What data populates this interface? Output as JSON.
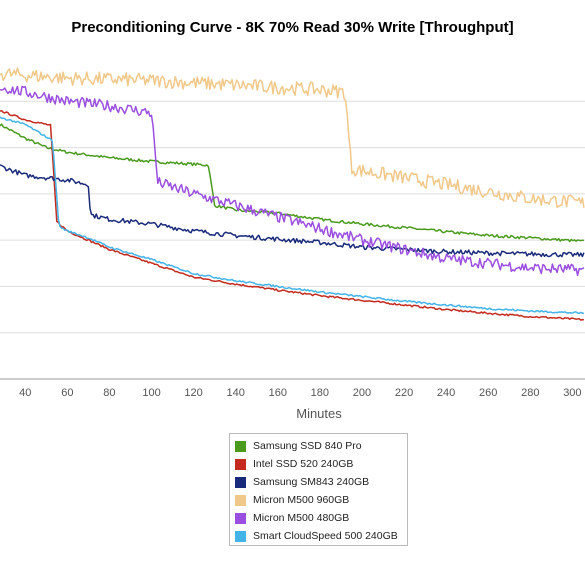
{
  "chart_data": {
    "type": "line",
    "title": "Preconditioning Curve - 8K 70% Read 30% Write [Throughput]",
    "subtitle": "",
    "xlabel": "Minutes",
    "ylabel": "",
    "x_ticks": [
      40,
      60,
      80,
      100,
      120,
      140,
      160,
      180,
      200,
      220,
      240,
      260,
      280,
      300
    ],
    "xlim": [
      28,
      306
    ],
    "ylim": [
      0,
      7
    ],
    "y_grid_values": [
      1,
      2,
      3,
      4,
      5,
      6
    ],
    "grid": "horizontal",
    "legend_position": "bottom-center",
    "series": [
      {
        "name": "Samsung SSD 840 Pro",
        "color": "#4a9a1e",
        "points": [
          [
            28,
            5.5
          ],
          [
            40,
            5.2
          ],
          [
            50,
            5.0
          ],
          [
            60,
            4.9
          ],
          [
            80,
            4.78
          ],
          [
            100,
            4.7
          ],
          [
            127,
            4.62
          ],
          [
            130,
            3.75
          ],
          [
            140,
            3.65
          ],
          [
            160,
            3.58
          ],
          [
            180,
            3.45
          ],
          [
            200,
            3.35
          ],
          [
            220,
            3.27
          ],
          [
            240,
            3.18
          ],
          [
            260,
            3.1
          ],
          [
            280,
            3.05
          ],
          [
            306,
            2.97
          ]
        ],
        "noise": 0.03
      },
      {
        "name": "Intel SSD 520 240GB",
        "color": "#c42b1e",
        "points": [
          [
            28,
            5.8
          ],
          [
            40,
            5.6
          ],
          [
            52,
            5.48
          ],
          [
            55,
            3.4
          ],
          [
            60,
            3.2
          ],
          [
            70,
            3.0
          ],
          [
            80,
            2.8
          ],
          [
            100,
            2.5
          ],
          [
            120,
            2.2
          ],
          [
            140,
            2.05
          ],
          [
            160,
            1.92
          ],
          [
            180,
            1.8
          ],
          [
            200,
            1.7
          ],
          [
            220,
            1.6
          ],
          [
            240,
            1.5
          ],
          [
            260,
            1.42
          ],
          [
            280,
            1.35
          ],
          [
            306,
            1.28
          ]
        ],
        "noise": 0.02
      },
      {
        "name": "Samsung SM843 240GB",
        "color": "#1a2a7a",
        "points": [
          [
            28,
            4.6
          ],
          [
            40,
            4.4
          ],
          [
            60,
            4.3
          ],
          [
            70,
            4.2
          ],
          [
            71,
            3.55
          ],
          [
            80,
            3.45
          ],
          [
            100,
            3.35
          ],
          [
            120,
            3.2
          ],
          [
            140,
            3.1
          ],
          [
            160,
            3.02
          ],
          [
            180,
            2.95
          ],
          [
            200,
            2.85
          ],
          [
            220,
            2.8
          ],
          [
            240,
            2.75
          ],
          [
            260,
            2.72
          ],
          [
            280,
            2.7
          ],
          [
            306,
            2.68
          ]
        ],
        "noise": 0.05
      },
      {
        "name": "Micron M500 960GB",
        "color": "#f0c88a",
        "points": [
          [
            28,
            6.6
          ],
          [
            60,
            6.5
          ],
          [
            100,
            6.45
          ],
          [
            120,
            6.4
          ],
          [
            140,
            6.35
          ],
          [
            160,
            6.3
          ],
          [
            180,
            6.25
          ],
          [
            192,
            6.2
          ],
          [
            195,
            4.55
          ],
          [
            200,
            4.5
          ],
          [
            220,
            4.35
          ],
          [
            240,
            4.2
          ],
          [
            260,
            4.05
          ],
          [
            280,
            3.9
          ],
          [
            306,
            3.8
          ]
        ],
        "noise": 0.15
      },
      {
        "name": "Micron M500 480GB",
        "color": "#9b4fe0",
        "points": [
          [
            28,
            6.3
          ],
          [
            40,
            6.2
          ],
          [
            60,
            6.0
          ],
          [
            80,
            5.9
          ],
          [
            100,
            5.75
          ],
          [
            103,
            4.25
          ],
          [
            120,
            4.0
          ],
          [
            140,
            3.75
          ],
          [
            160,
            3.5
          ],
          [
            180,
            3.25
          ],
          [
            200,
            3.0
          ],
          [
            220,
            2.8
          ],
          [
            240,
            2.6
          ],
          [
            260,
            2.5
          ],
          [
            280,
            2.4
          ],
          [
            306,
            2.35
          ]
        ],
        "noise": 0.12
      },
      {
        "name": "Smart CloudSpeed 500 240GB",
        "color": "#44b4e8",
        "points": [
          [
            28,
            5.65
          ],
          [
            40,
            5.5
          ],
          [
            53,
            5.15
          ],
          [
            56,
            3.3
          ],
          [
            60,
            3.2
          ],
          [
            70,
            3.05
          ],
          [
            80,
            2.85
          ],
          [
            100,
            2.58
          ],
          [
            120,
            2.28
          ],
          [
            140,
            2.12
          ],
          [
            160,
            2.0
          ],
          [
            180,
            1.88
          ],
          [
            200,
            1.78
          ],
          [
            220,
            1.68
          ],
          [
            240,
            1.6
          ],
          [
            260,
            1.52
          ],
          [
            280,
            1.47
          ],
          [
            306,
            1.42
          ]
        ],
        "noise": 0.02
      }
    ]
  }
}
